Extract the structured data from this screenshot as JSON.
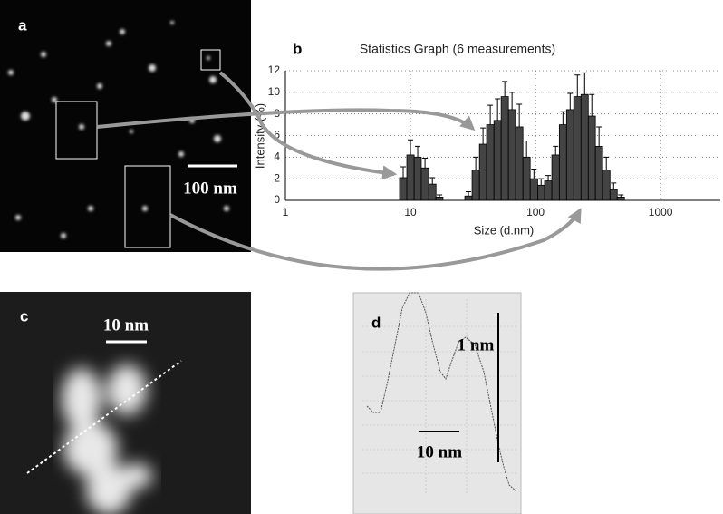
{
  "panels": {
    "a": {
      "label": "a",
      "scale_bar": "100 nm"
    },
    "c": {
      "label": "c",
      "scale_bar": "10 nm"
    },
    "d": {
      "label": "d",
      "vertical_scale": "1 nm",
      "horizontal_scale": "10 nm"
    }
  },
  "chart_data": {
    "type": "histogram",
    "label": "b",
    "title": "Statistics Graph (6 measurements)",
    "x_label": "Size (d.nm)",
    "y_label": "Intensity (%)",
    "bins": [
      8.18,
      9.35,
      10.7,
      12.2,
      14.0,
      16.0,
      18.2,
      20.8,
      23.8,
      27.2,
      31.1,
      35.6,
      40.6,
      46.5,
      53.1,
      60.7,
      69.3,
      79.3,
      90.6,
      104,
      118,
      135,
      155,
      177,
      202,
      231,
      264,
      301,
      344,
      394,
      450,
      514
    ],
    "values": [
      2.1,
      4.2,
      4.0,
      3.0,
      1.5,
      0.3,
      0,
      0,
      0,
      0.4,
      2.8,
      5.2,
      7.0,
      7.4,
      9.6,
      8.4,
      6.8,
      4.0,
      2.0,
      1.4,
      1.8,
      4.2,
      7.0,
      8.4,
      9.6,
      9.8,
      7.8,
      5.0,
      2.8,
      1.0,
      0.3
    ],
    "errors": [
      1.0,
      1.4,
      1.0,
      0.9,
      0.6,
      0.2,
      0,
      0,
      0,
      0.4,
      1.2,
      1.5,
      1.8,
      2.0,
      1.4,
      1.6,
      2.1,
      1.5,
      0.9,
      0.6,
      0.5,
      0.8,
      1.2,
      1.5,
      2.0,
      2.0,
      2.0,
      1.8,
      1.2,
      0.6,
      0.2
    ],
    "color": "#444444",
    "log_x": true,
    "grid": true,
    "xlim": [
      1,
      3000
    ],
    "xticks": [
      1,
      10,
      100,
      1000
    ],
    "ylim": [
      0,
      12
    ],
    "yticks": [
      0,
      2,
      4,
      6,
      8,
      10,
      12
    ]
  }
}
